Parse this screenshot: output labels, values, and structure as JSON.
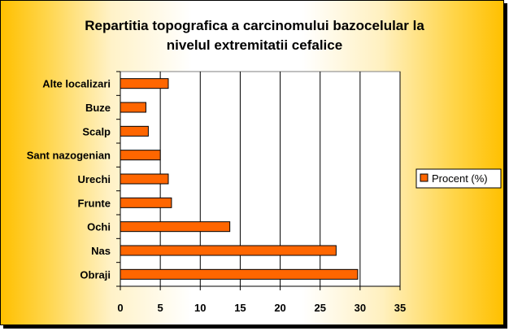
{
  "chart_data": {
    "type": "bar",
    "orientation": "horizontal",
    "title_lines": [
      "Repartitia topografica a carcinomului bazocelular la",
      "nivelul extremitatii cefalice"
    ],
    "categories": [
      "Alte localizari",
      "Buze",
      "Scalp",
      "Sant nazogenian",
      "Urechi",
      "Frunte",
      "Ochi",
      "Nas",
      "Obraji"
    ],
    "series": [
      {
        "name": "Procent (%)",
        "values": [
          6,
          3.2,
          3.5,
          5,
          6,
          6.4,
          13.7,
          27,
          29.7
        ],
        "color": "#ff6600"
      }
    ],
    "xlim": [
      0,
      35
    ],
    "x_ticks": [
      "0",
      "5",
      "10",
      "15",
      "20",
      "25",
      "30",
      "35"
    ],
    "grid": "vertical",
    "legend": "right"
  }
}
